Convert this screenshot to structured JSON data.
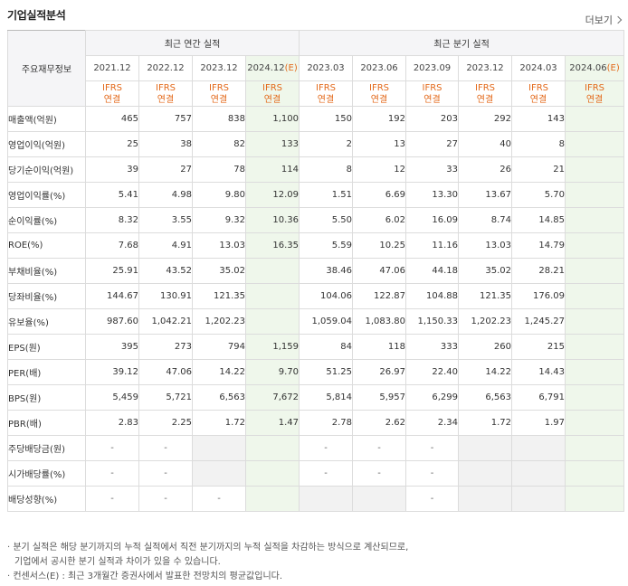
{
  "header": {
    "title": "기업실적분석",
    "more_label": "더보기"
  },
  "table": {
    "row_header_label": "주요재무정보",
    "group_annual": "최근 연간 실적",
    "group_quarter": "최근 분기 실적",
    "periods": [
      "2021.12",
      "2022.12",
      "2023.12",
      "2024.12(E)",
      "2023.03",
      "2023.06",
      "2023.09",
      "2023.12",
      "2024.03",
      "2024.06(E)"
    ],
    "period_bases": [
      "2021.12",
      "2022.12",
      "2023.12",
      "2024.12",
      "2023.03",
      "2023.06",
      "2023.09",
      "2023.12",
      "2024.03",
      "2024.06"
    ],
    "estimate_marker": "(E)",
    "ifrs_line1": "IFRS",
    "ifrs_line2": "연결",
    "rows": [
      {
        "label": "매출액(억원)",
        "values": [
          "465",
          "757",
          "838",
          "1,100",
          "150",
          "192",
          "203",
          "292",
          "143",
          ""
        ]
      },
      {
        "label": "영업이익(억원)",
        "values": [
          "25",
          "38",
          "82",
          "133",
          "2",
          "13",
          "27",
          "40",
          "8",
          ""
        ]
      },
      {
        "label": "당기순이익(억원)",
        "values": [
          "39",
          "27",
          "78",
          "114",
          "8",
          "12",
          "33",
          "26",
          "21",
          ""
        ]
      },
      {
        "label": "영업이익률(%)",
        "values": [
          "5.41",
          "4.98",
          "9.80",
          "12.09",
          "1.51",
          "6.69",
          "13.30",
          "13.67",
          "5.70",
          ""
        ]
      },
      {
        "label": "순이익률(%)",
        "values": [
          "8.32",
          "3.55",
          "9.32",
          "10.36",
          "5.50",
          "6.02",
          "16.09",
          "8.74",
          "14.85",
          ""
        ]
      },
      {
        "label": "ROE(%)",
        "values": [
          "7.68",
          "4.91",
          "13.03",
          "16.35",
          "5.59",
          "10.25",
          "11.16",
          "13.03",
          "14.79",
          ""
        ]
      },
      {
        "label": "부채비율(%)",
        "values": [
          "25.91",
          "43.52",
          "35.02",
          "",
          "38.46",
          "47.06",
          "44.18",
          "35.02",
          "28.21",
          ""
        ]
      },
      {
        "label": "당좌비율(%)",
        "values": [
          "144.67",
          "130.91",
          "121.35",
          "",
          "104.06",
          "122.87",
          "104.88",
          "121.35",
          "176.09",
          ""
        ]
      },
      {
        "label": "유보율(%)",
        "values": [
          "987.60",
          "1,042.21",
          "1,202.23",
          "",
          "1,059.04",
          "1,083.80",
          "1,150.33",
          "1,202.23",
          "1,245.27",
          ""
        ]
      },
      {
        "label": "EPS(원)",
        "values": [
          "395",
          "273",
          "794",
          "1,159",
          "84",
          "118",
          "333",
          "260",
          "215",
          ""
        ]
      },
      {
        "label": "PER(배)",
        "values": [
          "39.12",
          "47.06",
          "14.22",
          "9.70",
          "51.25",
          "26.97",
          "22.40",
          "14.22",
          "14.43",
          ""
        ]
      },
      {
        "label": "BPS(원)",
        "values": [
          "5,459",
          "5,721",
          "6,563",
          "7,672",
          "5,814",
          "5,957",
          "6,299",
          "6,563",
          "6,791",
          ""
        ]
      },
      {
        "label": "PBR(배)",
        "values": [
          "2.83",
          "2.25",
          "1.72",
          "1.47",
          "2.78",
          "2.62",
          "2.34",
          "1.72",
          "1.97",
          ""
        ]
      },
      {
        "label": "주당배당금(원)",
        "values": [
          "-",
          "-",
          "",
          "",
          "-",
          "-",
          "-",
          "",
          "",
          ""
        ]
      },
      {
        "label": "시가배당률(%)",
        "values": [
          "-",
          "-",
          "",
          "",
          "-",
          "-",
          "-",
          "",
          "",
          ""
        ]
      },
      {
        "label": "배당성향(%)",
        "values": [
          "-",
          "-",
          "-",
          "",
          "",
          "",
          "-",
          "",
          "",
          ""
        ]
      }
    ]
  },
  "notes": {
    "line1": "· 분기 실적은 해당 분기까지의 누적 실적에서 직전 분기까지의 누적 실적을 차감하는 방식으로 계산되므로,",
    "line2": "기업에서 공시한 분기 실적과 차이가 있을 수 있습니다.",
    "line3": "· 컨센서스(E) : 최근 3개월간 증권사에서 발표한 전망치의 평균값입니다."
  },
  "colors": {
    "accent": "#e3691a",
    "estimate_bg": "#eff7eb",
    "header_bg": "#f5f5f7",
    "empty_bg": "#f2f2f2"
  }
}
